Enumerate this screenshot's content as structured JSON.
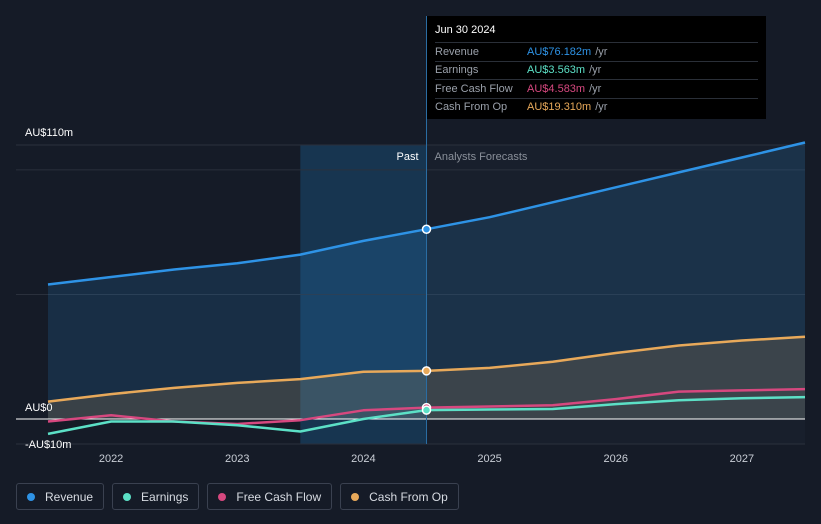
{
  "tooltip": {
    "date": "Jun 30 2024",
    "rows": [
      {
        "label": "Revenue",
        "value": "AU$76.182m",
        "unit": "/yr",
        "color": "#2e93e6"
      },
      {
        "label": "Earnings",
        "value": "AU$3.563m",
        "unit": "/yr",
        "color": "#5ce0c6"
      },
      {
        "label": "Free Cash Flow",
        "value": "AU$4.583m",
        "unit": "/yr",
        "color": "#d6487f"
      },
      {
        "label": "Cash From Op",
        "value": "AU$19.310m",
        "unit": "/yr",
        "color": "#e8a95a"
      }
    ]
  },
  "legend": [
    {
      "label": "Revenue",
      "color": "#2e93e6"
    },
    {
      "label": "Earnings",
      "color": "#5ce0c6"
    },
    {
      "label": "Free Cash Flow",
      "color": "#d6487f"
    },
    {
      "label": "Cash From Op",
      "color": "#e8a95a"
    }
  ],
  "chart_data": {
    "type": "line",
    "y_tick_labels": [
      "AU$110m",
      "AU$0",
      "-AU$10m"
    ],
    "x_tick_labels": [
      "2022",
      "2023",
      "2024",
      "2025",
      "2026",
      "2027"
    ],
    "past_label": "Past",
    "forecast_label": "Analysts Forecasts",
    "ylim": [
      -10,
      110
    ],
    "xlim": [
      2021.5,
      2027.5
    ],
    "past_start": 2023.5,
    "past_end": 2024.5,
    "grid": true,
    "series": [
      {
        "name": "Revenue",
        "color": "#2e93e6",
        "area": true,
        "points": [
          [
            2021.5,
            54
          ],
          [
            2022.0,
            57
          ],
          [
            2022.5,
            60
          ],
          [
            2023.0,
            62.5
          ],
          [
            2023.5,
            66
          ],
          [
            2024.0,
            71.5
          ],
          [
            2024.5,
            76.182
          ],
          [
            2025.0,
            81
          ],
          [
            2025.5,
            87
          ],
          [
            2026.0,
            93
          ],
          [
            2026.5,
            99
          ],
          [
            2027.0,
            105
          ],
          [
            2027.5,
            111
          ]
        ]
      },
      {
        "name": "Cash From Op",
        "color": "#e8a95a",
        "area": true,
        "points": [
          [
            2021.5,
            7
          ],
          [
            2022.0,
            10
          ],
          [
            2022.5,
            12.5
          ],
          [
            2023.0,
            14.5
          ],
          [
            2023.5,
            16
          ],
          [
            2024.0,
            19
          ],
          [
            2024.5,
            19.31
          ],
          [
            2025.0,
            20.5
          ],
          [
            2025.5,
            23
          ],
          [
            2026.0,
            26.5
          ],
          [
            2026.5,
            29.5
          ],
          [
            2027.0,
            31.5
          ],
          [
            2027.5,
            33
          ]
        ]
      },
      {
        "name": "Free Cash Flow",
        "color": "#d6487f",
        "area": false,
        "points": [
          [
            2021.5,
            -1
          ],
          [
            2022.0,
            1.5
          ],
          [
            2022.5,
            -1
          ],
          [
            2023.0,
            -2
          ],
          [
            2023.5,
            -0.5
          ],
          [
            2024.0,
            3.5
          ],
          [
            2024.5,
            4.583
          ],
          [
            2025.0,
            5
          ],
          [
            2025.5,
            5.5
          ],
          [
            2026.0,
            8
          ],
          [
            2026.5,
            11
          ],
          [
            2027.0,
            11.5
          ],
          [
            2027.5,
            12
          ]
        ]
      },
      {
        "name": "Earnings",
        "color": "#5ce0c6",
        "area": false,
        "points": [
          [
            2021.5,
            -6
          ],
          [
            2022.0,
            -1
          ],
          [
            2022.5,
            -1
          ],
          [
            2023.0,
            -2.5
          ],
          [
            2023.5,
            -5
          ],
          [
            2024.0,
            0
          ],
          [
            2024.5,
            3.563
          ],
          [
            2025.0,
            3.8
          ],
          [
            2025.5,
            4
          ],
          [
            2026.0,
            6
          ],
          [
            2026.5,
            7.5
          ],
          [
            2027.0,
            8.3
          ],
          [
            2027.5,
            8.8
          ]
        ]
      }
    ],
    "highlight_x": 2024.5
  }
}
